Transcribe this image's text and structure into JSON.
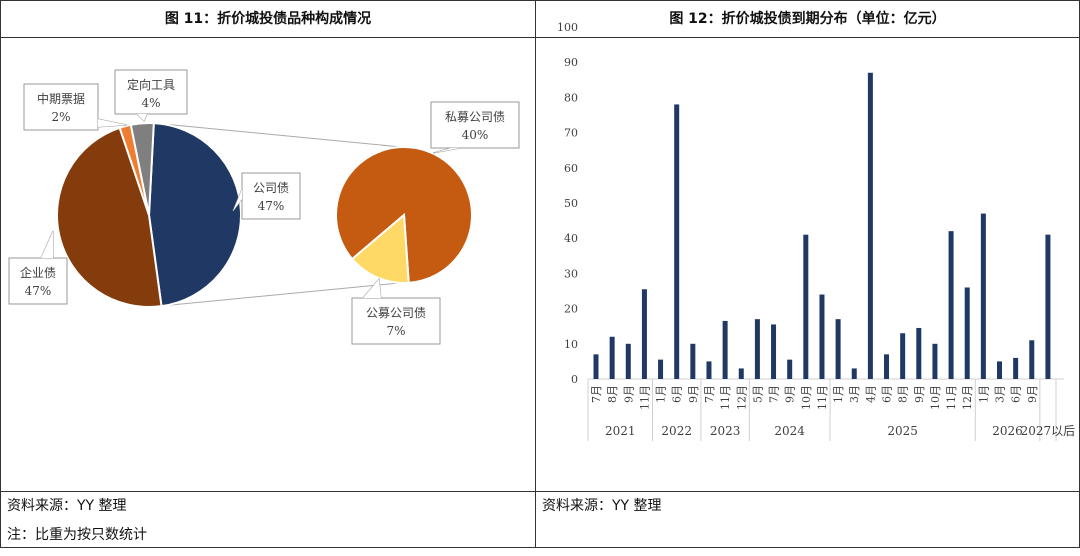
{
  "left": {
    "title": "图 11：折价城投债品种构成情况",
    "source": "资料来源：YY 整理",
    "note": "注：比重为按只数统计"
  },
  "right": {
    "title": "图 12：折价城投债到期分布（单位：亿元）",
    "source": "资料来源：YY 整理"
  },
  "chart_data": [
    {
      "type": "pie",
      "subtype": "pie-of-pie",
      "slices": [
        {
          "label": "公司债",
          "pct_label": "47%",
          "value": 47,
          "color": "#1F3864"
        },
        {
          "label": "企业债",
          "pct_label": "47%",
          "value": 47,
          "color": "#843C0C"
        },
        {
          "label": "中期票据",
          "pct_label": "2%",
          "value": 2,
          "color": "#ED7D31"
        },
        {
          "label": "定向工具",
          "pct_label": "4%",
          "value": 4,
          "color": "#7F7F7F"
        }
      ],
      "secondary": [
        {
          "label": "私募公司债",
          "pct_label": "40%",
          "value": 40,
          "color": "#C55A11"
        },
        {
          "label": "公募公司债",
          "pct_label": "7%",
          "value": 7,
          "color": "#FFD966"
        }
      ]
    },
    {
      "type": "bar",
      "color": "#1F3864",
      "ylim": [
        0,
        100
      ],
      "yticks": [
        0,
        10,
        20,
        30,
        40,
        50,
        60,
        70,
        80,
        90,
        100
      ],
      "groups": [
        {
          "year": "2021",
          "months": [
            "7月",
            "8月",
            "9月",
            "11月"
          ],
          "values": [
            7,
            12,
            10,
            25.5
          ]
        },
        {
          "year": "2022",
          "months": [
            "1月",
            "6月",
            "9月"
          ],
          "values": [
            5.5,
            78,
            10
          ]
        },
        {
          "year": "2023",
          "months": [
            "7月",
            "11月",
            "12月"
          ],
          "values": [
            5,
            16.5,
            3
          ]
        },
        {
          "year": "2024",
          "months": [
            "5月",
            "7月",
            "9月",
            "10月",
            "11月"
          ],
          "values": [
            17,
            15.5,
            5.5,
            41,
            24
          ]
        },
        {
          "year": "2025",
          "months": [
            "1月",
            "3月",
            "4月",
            "6月",
            "8月",
            "9月",
            "10月",
            "11月",
            "12月"
          ],
          "values": [
            17,
            3,
            87,
            7,
            13,
            14.5,
            10,
            42,
            26
          ]
        },
        {
          "year": "2026",
          "months": [
            "1月",
            "3月",
            "6月",
            "9月"
          ],
          "values": [
            47,
            5,
            6,
            11
          ]
        },
        {
          "year": "2027以后",
          "months": [
            ""
          ],
          "values": [
            41
          ]
        }
      ]
    }
  ]
}
